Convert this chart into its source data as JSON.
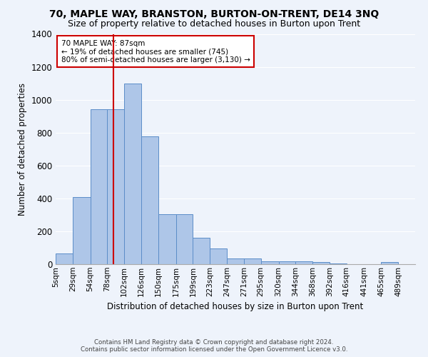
{
  "title": "70, MAPLE WAY, BRANSTON, BURTON-ON-TRENT, DE14 3NQ",
  "subtitle": "Size of property relative to detached houses in Burton upon Trent",
  "xlabel": "Distribution of detached houses by size in Burton upon Trent",
  "ylabel": "Number of detached properties",
  "footer_line1": "Contains HM Land Registry data © Crown copyright and database right 2024.",
  "footer_line2": "Contains public sector information licensed under the Open Government Licence v3.0.",
  "annotation_title": "70 MAPLE WAY: 87sqm",
  "annotation_line1": "← 19% of detached houses are smaller (745)",
  "annotation_line2": "80% of semi-detached houses are larger (3,130) →",
  "property_size": 87,
  "bar_labels": [
    "5sqm",
    "29sqm",
    "54sqm",
    "78sqm",
    "102sqm",
    "126sqm",
    "150sqm",
    "175sqm",
    "199sqm",
    "223sqm",
    "247sqm",
    "271sqm",
    "295sqm",
    "320sqm",
    "344sqm",
    "368sqm",
    "392sqm",
    "416sqm",
    "441sqm",
    "465sqm",
    "489sqm"
  ],
  "bin_edges": [
    5,
    29,
    54,
    78,
    102,
    126,
    150,
    175,
    199,
    223,
    247,
    271,
    295,
    320,
    344,
    368,
    392,
    416,
    441,
    465,
    489,
    513
  ],
  "bar_heights": [
    65,
    410,
    940,
    940,
    1100,
    775,
    305,
    305,
    160,
    97,
    35,
    35,
    18,
    18,
    18,
    12,
    5,
    0,
    0,
    12,
    0
  ],
  "bar_color": "#aec6e8",
  "bar_edge_color": "#5b8dc8",
  "vline_x": 87,
  "vline_color": "#cc0000",
  "annotation_box_color": "#cc0000",
  "ylim": [
    0,
    1400
  ],
  "yticks": [
    0,
    200,
    400,
    600,
    800,
    1000,
    1200,
    1400
  ],
  "bg_color": "#eef3fb",
  "grid_color": "#ffffff",
  "title_fontsize": 10,
  "subtitle_fontsize": 9
}
